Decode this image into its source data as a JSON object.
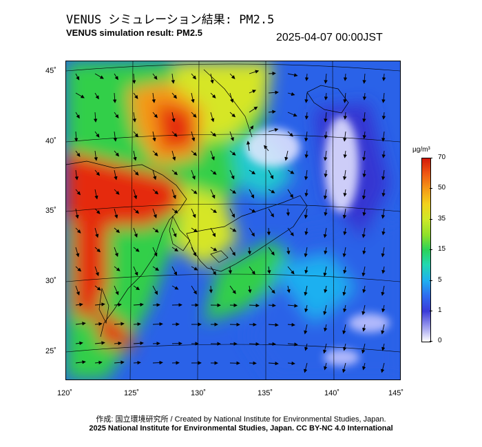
{
  "header": {
    "title_jp": "VENUS シミュレーション結果: PM2.5",
    "title_en": "VENUS simulation result: PM2.5",
    "datetime": "2025-04-07 00:00JST"
  },
  "map": {
    "lon_labels": [
      "120˚",
      "125˚",
      "130˚",
      "135˚",
      "140˚",
      "145˚"
    ],
    "lat_labels": [
      "45˚",
      "40˚",
      "35˚",
      "30˚",
      "25˚"
    ]
  },
  "colorbar": {
    "unit": "µg/m³",
    "ticks": [
      "70",
      "50",
      "35",
      "15",
      "5",
      "1",
      "0"
    ]
  },
  "footer": {
    "credit_jp": "作成: 国立環境研究所 / Created by National Institute for Environmental Studies, Japan.",
    "copyright": "2025 National Institute for Environmental Studies, Japan. CC BY-NC 4.0 International"
  },
  "colors": {
    "red": "#e52a0c",
    "orange": "#f59a18",
    "yellow": "#d6e628",
    "green": "#32cf4a",
    "cyan": "#22c8d0",
    "blue": "#2a62e8",
    "deep_blue": "#3535d2",
    "white": "#e8e8ff"
  }
}
